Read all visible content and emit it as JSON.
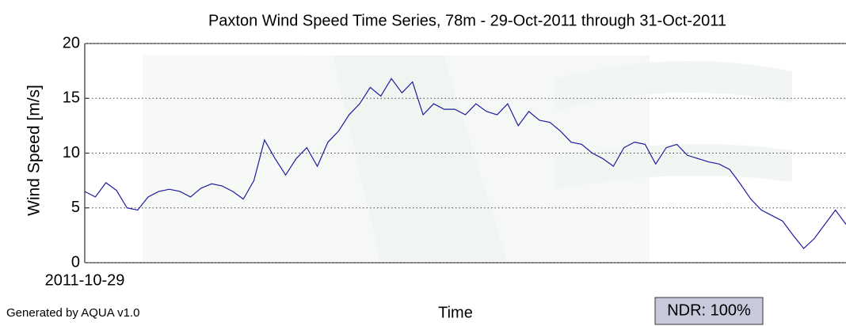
{
  "chart_data": {
    "type": "line",
    "title": "Paxton Wind Speed Time Series, 78m - 29-Oct-2011 through 31-Oct-2011",
    "x_label": "Time",
    "y_label": "Wind Speed [m/s]",
    "annotations": [
      "Generated by AQUA v1.0",
      "NDR: 100%"
    ],
    "x": [
      0,
      1,
      2,
      3,
      4,
      5,
      6,
      7,
      8,
      9,
      10,
      11,
      12,
      13,
      14,
      15,
      16,
      17,
      18,
      19,
      20,
      21,
      22,
      23,
      24,
      25,
      26,
      27,
      28,
      29,
      30,
      31,
      32,
      33,
      34,
      35,
      36,
      37,
      38,
      39,
      40,
      41,
      42,
      43,
      44,
      45,
      46,
      47,
      48,
      49,
      50,
      51,
      52,
      53,
      54,
      55,
      56,
      57,
      58,
      59,
      60,
      61,
      62,
      63,
      64,
      65,
      66,
      67,
      68,
      69,
      70,
      71,
      72
    ],
    "series": [
      {
        "name": "Wind Speed",
        "color": "#1c1c9c",
        "values": [
          6.5,
          6,
          7.3,
          6.6,
          5,
          4.8,
          6,
          6.5,
          6.7,
          6.5,
          6,
          6.8,
          7.2,
          7,
          6.5,
          5.8,
          7.5,
          11.2,
          9.5,
          8,
          9.5,
          10.5,
          8.8,
          11,
          12,
          13.5,
          14.5,
          16,
          15.2,
          16.8,
          15.5,
          16.5,
          13.5,
          14.5,
          14,
          14,
          13.5,
          14.5,
          13.8,
          13.5,
          14.5,
          12.5,
          13.8,
          13,
          12.8,
          12,
          11,
          10.8,
          10,
          9.5,
          8.8,
          10.5,
          11,
          10.8,
          9,
          10.5,
          10.8,
          9.8,
          9.5,
          9.2,
          9,
          8.5,
          7.2,
          5.8,
          4.8,
          4.3,
          3.8,
          2.5,
          1.3,
          2.2,
          3.5,
          4.8,
          3.5
        ]
      }
    ],
    "xlim": [
      0,
      72
    ],
    "xticks": [
      {
        "value": 0,
        "label": "2011-10-29"
      }
    ],
    "ylim": [
      0,
      20
    ],
    "yticks": [
      0,
      5,
      10,
      15,
      20
    ],
    "grid": true
  }
}
